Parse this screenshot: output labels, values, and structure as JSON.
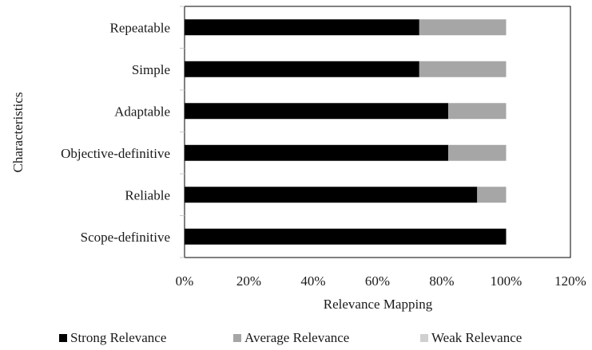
{
  "chart_data": {
    "type": "bar",
    "orientation": "horizontal",
    "stacked": true,
    "percent": true,
    "categories": [
      "Repeatable",
      "Simple",
      "Adaptable",
      "Objective-definitive",
      "Reliable",
      "Scope-definitive"
    ],
    "series": [
      {
        "name": "Strong Relevance",
        "values": [
          0.73,
          0.73,
          0.82,
          0.82,
          0.91,
          1.0
        ],
        "color": "#000000"
      },
      {
        "name": "Average Relevance",
        "values": [
          0.27,
          0.27,
          0.18,
          0.18,
          0.09,
          0.0
        ],
        "color": "#a6a6a6"
      },
      {
        "name": "Weak Relevance",
        "values": [
          0.0,
          0.0,
          0.0,
          0.0,
          0.0,
          0.0
        ],
        "color": "#d0d0d0"
      }
    ],
    "xlabel": "Relevance Mapping",
    "ylabel": "Characteristics",
    "xlim": [
      0,
      1.2
    ],
    "xticks": [
      "0%",
      "20%",
      "40%",
      "60%",
      "80%",
      "100%",
      "120%"
    ],
    "grid": false,
    "legend_position": "bottom"
  }
}
